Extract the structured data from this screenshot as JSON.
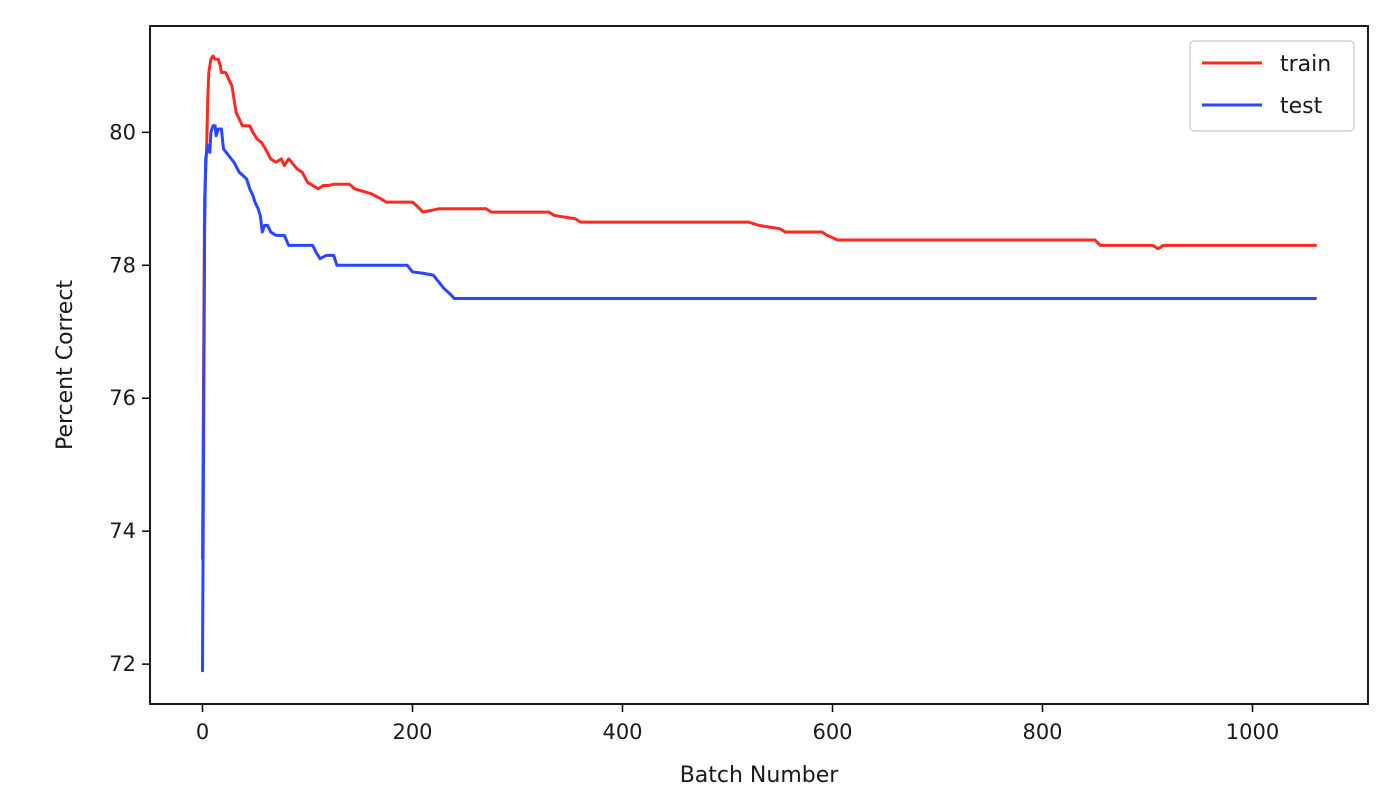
{
  "chart_data": {
    "type": "line",
    "title": "",
    "xlabel": "Batch Number",
    "ylabel": "Percent Correct",
    "xlim": [
      -50,
      1110
    ],
    "ylim": [
      71.4,
      81.6
    ],
    "xticks": [
      0,
      200,
      400,
      600,
      800,
      1000
    ],
    "yticks": [
      72,
      74,
      76,
      78,
      80
    ],
    "xtick_labels": [
      "0",
      "200",
      "400",
      "600",
      "800",
      "1000"
    ],
    "ytick_labels": [
      "72",
      "74",
      "76",
      "78",
      "80"
    ],
    "grid": false,
    "legend_position": "top-right",
    "series": [
      {
        "name": "train",
        "color": "#ff2a1f",
        "points": [
          [
            0,
            73.6
          ],
          [
            2,
            79.0
          ],
          [
            4,
            79.8
          ],
          [
            5,
            80.5
          ],
          [
            6,
            80.9
          ],
          [
            8,
            81.1
          ],
          [
            10,
            81.15
          ],
          [
            12,
            81.1
          ],
          [
            15,
            81.1
          ],
          [
            17,
            81.0
          ],
          [
            18,
            80.9
          ],
          [
            22,
            80.9
          ],
          [
            25,
            80.8
          ],
          [
            28,
            80.7
          ],
          [
            30,
            80.5
          ],
          [
            32,
            80.3
          ],
          [
            35,
            80.2
          ],
          [
            38,
            80.1
          ],
          [
            45,
            80.1
          ],
          [
            48,
            80.0
          ],
          [
            52,
            79.9
          ],
          [
            56,
            79.85
          ],
          [
            60,
            79.75
          ],
          [
            65,
            79.6
          ],
          [
            70,
            79.55
          ],
          [
            75,
            79.6
          ],
          [
            78,
            79.5
          ],
          [
            82,
            79.6
          ],
          [
            85,
            79.55
          ],
          [
            90,
            79.45
          ],
          [
            95,
            79.4
          ],
          [
            100,
            79.25
          ],
          [
            105,
            79.2
          ],
          [
            110,
            79.15
          ],
          [
            115,
            79.2
          ],
          [
            120,
            79.2
          ],
          [
            125,
            79.22
          ],
          [
            140,
            79.22
          ],
          [
            145,
            79.15
          ],
          [
            160,
            79.08
          ],
          [
            170,
            79.0
          ],
          [
            175,
            78.95
          ],
          [
            200,
            78.95
          ],
          [
            205,
            78.88
          ],
          [
            210,
            78.8
          ],
          [
            225,
            78.85
          ],
          [
            270,
            78.85
          ],
          [
            275,
            78.8
          ],
          [
            330,
            78.8
          ],
          [
            335,
            78.75
          ],
          [
            355,
            78.7
          ],
          [
            360,
            78.65
          ],
          [
            520,
            78.65
          ],
          [
            530,
            78.6
          ],
          [
            550,
            78.55
          ],
          [
            555,
            78.5
          ],
          [
            590,
            78.5
          ],
          [
            595,
            78.45
          ],
          [
            605,
            78.38
          ],
          [
            850,
            78.38
          ],
          [
            855,
            78.3
          ],
          [
            905,
            78.3
          ],
          [
            910,
            78.25
          ],
          [
            915,
            78.3
          ],
          [
            1060,
            78.3
          ]
        ]
      },
      {
        "name": "test",
        "color": "#2a46ff",
        "points": [
          [
            0,
            71.9
          ],
          [
            2,
            78.5
          ],
          [
            3,
            79.6
          ],
          [
            5,
            79.8
          ],
          [
            7,
            79.7
          ],
          [
            8,
            80.0
          ],
          [
            10,
            80.1
          ],
          [
            12,
            80.1
          ],
          [
            13,
            79.95
          ],
          [
            15,
            80.05
          ],
          [
            18,
            80.05
          ],
          [
            20,
            79.75
          ],
          [
            25,
            79.65
          ],
          [
            30,
            79.55
          ],
          [
            35,
            79.4
          ],
          [
            42,
            79.3
          ],
          [
            45,
            79.15
          ],
          [
            48,
            79.05
          ],
          [
            50,
            78.95
          ],
          [
            53,
            78.85
          ],
          [
            55,
            78.75
          ],
          [
            57,
            78.5
          ],
          [
            59,
            78.6
          ],
          [
            62,
            78.6
          ],
          [
            65,
            78.5
          ],
          [
            70,
            78.45
          ],
          [
            78,
            78.45
          ],
          [
            82,
            78.3
          ],
          [
            105,
            78.3
          ],
          [
            108,
            78.2
          ],
          [
            112,
            78.1
          ],
          [
            118,
            78.15
          ],
          [
            125,
            78.15
          ],
          [
            128,
            78.0
          ],
          [
            195,
            78.0
          ],
          [
            200,
            77.9
          ],
          [
            210,
            77.88
          ],
          [
            220,
            77.85
          ],
          [
            225,
            77.75
          ],
          [
            230,
            77.65
          ],
          [
            235,
            77.58
          ],
          [
            240,
            77.5
          ],
          [
            1060,
            77.5
          ]
        ]
      }
    ]
  }
}
